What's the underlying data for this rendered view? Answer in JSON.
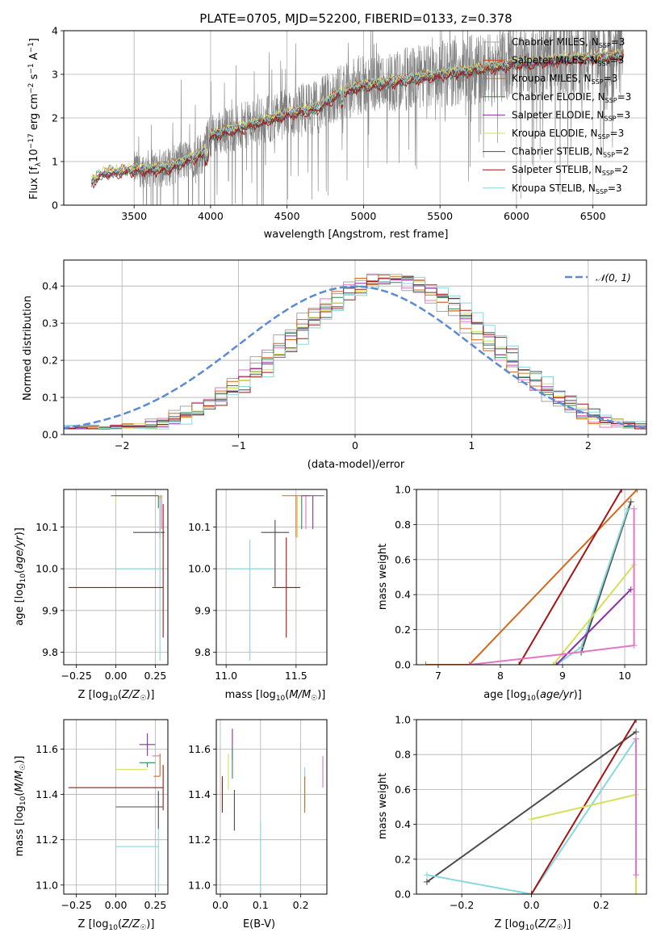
{
  "title": "PLATE=0705, MJD=52200, FIBERID=0133, z=0.378",
  "colors": {
    "data": "#808080",
    "chabrier_miles": "#a6a6a6",
    "salpeter_miles": "#c8472f",
    "kroupa_miles": "#d2691e",
    "chabrier_elodie": "#2e8b57",
    "salpeter_elodie": "#8b2fa8",
    "kroupa_elodie": "#d4e157",
    "chabrier_stelib": "#4d4d4d",
    "salpeter_stelib": "#a31515",
    "kroupa_stelib": "#87d8dc",
    "salpeter_miles_hist": "#e377c2",
    "gaussian": "#5b8ad6"
  },
  "chart_data": [
    {
      "id": "spectrum",
      "type": "line",
      "xlabel": "wavelength [Angstrom, rest frame]",
      "ylabel": "Flux [f_λ10⁻¹⁷ erg cm⁻² s⁻¹ A⁻¹]",
      "xlim": [
        3040,
        6850
      ],
      "ylim": [
        0,
        4
      ],
      "xticks": [
        "3500",
        "4000",
        "4500",
        "5000",
        "5500",
        "6000",
        "6500"
      ],
      "yticks": [
        "0",
        "1",
        "2",
        "3",
        "4"
      ],
      "legend_position": "upper right",
      "legend": [
        "Chabrier MILES, N_SSP=3",
        "Salpeter MILES, N_SSP=3",
        "Kroupa MILES, N_SSP=3",
        "Chabrier ELODIE, N_SSP=3",
        "Salpeter ELODIE, N_SSP=3",
        "Kroupa ELODIE, N_SSP=3",
        "Chabrier STELIB, N_SSP=2",
        "Salpeter STELIB, N_SSP=2",
        "Kroupa STELIB, N_SSP=3"
      ],
      "continuum_anchors": [
        {
          "x": 3220,
          "y": 0.55
        },
        {
          "x": 3300,
          "y": 0.75
        },
        {
          "x": 3500,
          "y": 0.82
        },
        {
          "x": 3700,
          "y": 0.85
        },
        {
          "x": 3850,
          "y": 1.05
        },
        {
          "x": 3950,
          "y": 1.2
        },
        {
          "x": 4000,
          "y": 1.6
        },
        {
          "x": 4200,
          "y": 1.8
        },
        {
          "x": 4500,
          "y": 2.1
        },
        {
          "x": 4700,
          "y": 2.25
        },
        {
          "x": 4850,
          "y": 2.6
        },
        {
          "x": 5000,
          "y": 2.75
        },
        {
          "x": 5200,
          "y": 2.85
        },
        {
          "x": 5500,
          "y": 3.0
        },
        {
          "x": 5800,
          "y": 3.15
        },
        {
          "x": 6000,
          "y": 3.25
        },
        {
          "x": 6300,
          "y": 3.35
        },
        {
          "x": 6550,
          "y": 3.4
        },
        {
          "x": 6700,
          "y": 3.45
        }
      ],
      "data_start": 3500,
      "models_start": 3220,
      "models_end": 6700
    },
    {
      "id": "residual_hist",
      "type": "line",
      "xlabel": "(data-model)/error",
      "ylabel": "Normed distribution",
      "xlim": [
        -2.5,
        2.5
      ],
      "ylim": [
        0,
        0.47
      ],
      "xticks": [
        "−2",
        "−1",
        "0",
        "1",
        "2"
      ],
      "yticks": [
        "0.0",
        "0.1",
        "0.2",
        "0.3",
        "0.4"
      ],
      "legend": [
        "𝒩(0, 1)"
      ],
      "legend_position": "upper right",
      "gaussian": {
        "mean": 0,
        "sigma": 1
      },
      "histogram": {
        "bin_width": 0.1,
        "center": 0.3,
        "sigma": 0.85,
        "peak": 0.42
      }
    },
    {
      "id": "age_vs_Z",
      "type": "scatter",
      "xlabel": "Z [log₁₀(Z/Z☉)]",
      "ylabel": "age  [log₁₀(age/yr)]",
      "xlim": [
        -0.33,
        0.33
      ],
      "ylim": [
        9.77,
        10.19
      ],
      "xticks": [
        "−0.25",
        "0.00",
        "0.25"
      ],
      "yticks": [
        "9.8",
        "9.9",
        "10.0",
        "10.1"
      ],
      "points": [
        {
          "color": "kroupa_elodie",
          "x": 0.0,
          "xerr": [
            0.0,
            0.3
          ],
          "y": 10.175,
          "yerr": [
            0.02,
            0.0
          ]
        },
        {
          "color": "chabrier_elodie",
          "x": 0.27,
          "xerr": [
            0.0,
            0.0
          ],
          "y": 10.175,
          "yerr": [
            0.03,
            0.0
          ]
        },
        {
          "color": "chabrier_stelib",
          "x": 0.27,
          "xerr": [
            0.3,
            0.0
          ],
          "y": 10.175,
          "yerr": [
            0.0,
            0.0
          ]
        },
        {
          "color": "kroupa_miles",
          "x": 0.28,
          "xerr": [
            0.0,
            0.0
          ],
          "y": 10.175,
          "yerr": [
            0.1,
            0.0
          ]
        },
        {
          "color": "salpeter_miles_hist",
          "x": 0.29,
          "xerr": [
            0.0,
            0.0
          ],
          "y": 10.175,
          "yerr": [
            0.08,
            0.0
          ]
        },
        {
          "color": "chabrier_stelib",
          "x": 0.21,
          "xerr": [
            0.1,
            0.1
          ],
          "y": 10.087,
          "yerr": [
            0.0,
            0.0
          ]
        },
        {
          "color": "kroupa_stelib",
          "x": 0.0,
          "xerr": [
            0.0,
            0.3
          ],
          "y": 10.0,
          "yerr": [
            0.0,
            0.0
          ]
        },
        {
          "color": "kroupa_stelib",
          "x": 0.28,
          "xerr": [
            0.0,
            0.0
          ],
          "y": 10.0,
          "yerr": [
            0.22,
            0.17
          ]
        },
        {
          "color": "salpeter_stelib",
          "x": -0.3,
          "xerr": [
            0.0,
            0.6
          ],
          "y": 9.955,
          "yerr": [
            0.0,
            0.0
          ]
        },
        {
          "color": "salpeter_stelib",
          "x": 0.3,
          "xerr": [
            0.0,
            0.0
          ],
          "y": 9.955,
          "yerr": [
            0.12,
            0.2
          ]
        }
      ]
    },
    {
      "id": "age_vs_mass",
      "type": "scatter",
      "xlabel": "mass [log₁₀(M/M☉)]",
      "ylabel": "",
      "xlim": [
        10.93,
        11.72
      ],
      "ylim": [
        9.77,
        10.19
      ],
      "xticks": [
        "11.0",
        "11.5"
      ],
      "yticks": [
        "9.8",
        "9.9",
        "10.0",
        "10.1"
      ],
      "points": [
        {
          "color": "kroupa_stelib",
          "x": 11.17,
          "xerr": [
            0.17,
            0.17
          ],
          "y": 10.0,
          "yerr": [
            0.22,
            0.07
          ]
        },
        {
          "color": "chabrier_stelib",
          "x": 11.35,
          "xerr": [
            0.1,
            0.1
          ],
          "y": 10.087,
          "yerr": [
            0.13,
            0.03
          ]
        },
        {
          "color": "salpeter_stelib",
          "x": 11.43,
          "xerr": [
            0.1,
            0.1
          ],
          "y": 9.955,
          "yerr": [
            0.12,
            0.12
          ]
        },
        {
          "color": "kroupa_miles",
          "x": 11.5,
          "xerr": [
            0.1,
            0.1
          ],
          "y": 10.175,
          "yerr": [
            0.1,
            0.0
          ]
        },
        {
          "color": "kroupa_elodie",
          "x": 11.51,
          "xerr": [
            0.0,
            0.0
          ],
          "y": 10.175,
          "yerr": [
            0.1,
            0.0
          ]
        },
        {
          "color": "chabrier_elodie",
          "x": 11.54,
          "xerr": [
            0.0,
            0.0
          ],
          "y": 10.175,
          "yerr": [
            0.08,
            0.0
          ]
        },
        {
          "color": "salpeter_miles_hist",
          "x": 11.57,
          "xerr": [
            0.0,
            0.0
          ],
          "y": 10.175,
          "yerr": [
            0.08,
            0.0
          ]
        },
        {
          "color": "salpeter_elodie",
          "x": 11.62,
          "xerr": [
            0.08,
            0.08
          ],
          "y": 10.175,
          "yerr": [
            0.08,
            0.0
          ]
        }
      ]
    },
    {
      "id": "cumulative_age",
      "type": "line",
      "xlabel": "age  [log₁₀(age/yr)]",
      "ylabel": "mass weight",
      "xlim": [
        6.65,
        10.35
      ],
      "ylim": [
        0,
        1
      ],
      "xticks": [
        "7",
        "8",
        "9",
        "10"
      ],
      "yticks": [
        "0.0",
        "0.2",
        "0.4",
        "0.6",
        "0.8",
        "1.0"
      ],
      "series": [
        {
          "color": "kroupa_miles",
          "points": [
            [
              6.8,
              0
            ],
            [
              7.5,
              0
            ],
            [
              10.2,
              1.0
            ]
          ]
        },
        {
          "color": "salpeter_stelib",
          "points": [
            [
              8.3,
              0
            ],
            [
              9.95,
              1.0
            ]
          ]
        },
        {
          "color": "chabrier_stelib",
          "points": [
            [
              9.3,
              0.07
            ],
            [
              10.1,
              0.93
            ]
          ]
        },
        {
          "color": "kroupa_stelib",
          "points": [
            [
              8.9,
              0
            ],
            [
              9.3,
              0.1
            ],
            [
              10.05,
              0.89
            ]
          ]
        },
        {
          "color": "salpeter_elodie",
          "points": [
            [
              8.9,
              0
            ],
            [
              10.1,
              0.43
            ]
          ]
        },
        {
          "color": "kroupa_elodie",
          "points": [
            [
              8.85,
              0
            ],
            [
              10.15,
              0.57
            ]
          ]
        },
        {
          "color": "salpeter_miles_hist",
          "points": [
            [
              7.5,
              0
            ],
            [
              9.0,
              0.06
            ],
            [
              10.15,
              0.11
            ],
            [
              10.15,
              0.89
            ]
          ]
        }
      ]
    },
    {
      "id": "mass_vs_Z",
      "type": "scatter",
      "xlabel": "Z [log₁₀(Z/Z☉)]",
      "ylabel": "mass [log₁₀(M/M☉)]",
      "xlim": [
        -0.33,
        0.33
      ],
      "ylim": [
        10.96,
        11.73
      ],
      "xticks": [
        "−0.25",
        "0.00",
        "0.25"
      ],
      "yticks": [
        "11.0",
        "11.2",
        "11.4",
        "11.6"
      ],
      "points": [
        {
          "color": "salpeter_elodie",
          "x": 0.2,
          "xerr": [
            0.05,
            0.05
          ],
          "y": 11.62,
          "yerr": [
            0.05,
            0.05
          ]
        },
        {
          "color": "salpeter_miles_hist",
          "x": 0.28,
          "xerr": [
            0.05,
            0.0
          ],
          "y": 11.57,
          "yerr": [
            0.0,
            0.0
          ]
        },
        {
          "color": "chabrier_elodie",
          "x": 0.2,
          "xerr": [
            0.05,
            0.05
          ],
          "y": 11.54,
          "yerr": [
            0.02,
            0.0
          ]
        },
        {
          "color": "kroupa_elodie",
          "x": 0.0,
          "xerr": [
            0.0,
            0.2
          ],
          "y": 11.51,
          "yerr": [
            0.0,
            0.0
          ]
        },
        {
          "color": "kroupa_miles",
          "x": 0.28,
          "xerr": [
            0.04,
            0.0
          ],
          "y": 11.48,
          "yerr": [
            0.0,
            0.1
          ]
        },
        {
          "color": "salpeter_stelib",
          "x": -0.3,
          "xerr": [
            0.0,
            0.6
          ],
          "y": 11.43,
          "yerr": [
            0.0,
            0.0
          ]
        },
        {
          "color": "salpeter_stelib",
          "x": 0.3,
          "xerr": [
            0.0,
            0.0
          ],
          "y": 11.43,
          "yerr": [
            0.1,
            0.1
          ]
        },
        {
          "color": "chabrier_stelib",
          "x": 0.0,
          "xerr": [
            0.0,
            0.3
          ],
          "y": 11.345,
          "yerr": [
            0.0,
            0.0
          ]
        },
        {
          "color": "chabrier_stelib",
          "x": 0.27,
          "xerr": [
            0.0,
            0.0
          ],
          "y": 11.345,
          "yerr": [
            0.1,
            0.07
          ]
        },
        {
          "color": "kroupa_stelib",
          "x": 0.0,
          "xerr": [
            0.0,
            0.27
          ],
          "y": 11.17,
          "yerr": [
            0.0,
            0.0
          ]
        },
        {
          "color": "kroupa_stelib",
          "x": 0.27,
          "xerr": [
            0.0,
            0.0
          ],
          "y": 11.17,
          "yerr": [
            0.2,
            0.08
          ]
        }
      ]
    },
    {
      "id": "mass_vs_ebv",
      "type": "scatter",
      "xlabel": "E(B-V)",
      "ylabel": "",
      "xlim": [
        -0.01,
        0.265
      ],
      "ylim": [
        10.96,
        11.73
      ],
      "xticks": [
        "0.0",
        "0.1",
        "0.2"
      ],
      "yticks": [
        "11.0",
        "11.2",
        "11.4",
        "11.6"
      ],
      "points": [
        {
          "color": "salpeter_stelib",
          "x": 0.005,
          "y": 11.4,
          "yerr": [
            0.08,
            0.08
          ]
        },
        {
          "color": "kroupa_elodie",
          "x": 0.02,
          "y": 11.5,
          "yerr": [
            0.08,
            0.08
          ]
        },
        {
          "color": "salpeter_elodie",
          "x": 0.03,
          "y": 11.62,
          "yerr": [
            0.07,
            0.07
          ]
        },
        {
          "color": "chabrier_elodie",
          "x": 0.03,
          "y": 11.54,
          "yerr": [
            0.07,
            0.07
          ]
        },
        {
          "color": "chabrier_stelib",
          "x": 0.035,
          "y": 11.33,
          "yerr": [
            0.09,
            0.09
          ]
        },
        {
          "color": "kroupa_stelib",
          "x": 0.1,
          "y": 11.12,
          "yerr": [
            0.16,
            0.16
          ]
        },
        {
          "color": "kroupa_stelib",
          "x": 0.21,
          "y": 11.43,
          "yerr": [
            0.09,
            0.09
          ]
        },
        {
          "color": "kroupa_miles",
          "x": 0.21,
          "y": 11.4,
          "yerr": [
            0.08,
            0.08
          ]
        },
        {
          "color": "salpeter_miles_hist",
          "x": 0.255,
          "y": 11.5,
          "yerr": [
            0.07,
            0.07
          ]
        }
      ]
    },
    {
      "id": "cumulative_Z",
      "type": "line",
      "xlabel": "Z [log₁₀(Z/Z☉)]",
      "ylabel": "mass weight",
      "xlim": [
        -0.33,
        0.33
      ],
      "ylim": [
        0,
        1
      ],
      "xticks": [
        "−0.2",
        "0.0",
        "0.2"
      ],
      "yticks": [
        "0.0",
        "0.2",
        "0.4",
        "0.6",
        "0.8",
        "1.0"
      ],
      "series": [
        {
          "color": "chabrier_stelib",
          "points": [
            [
              -0.3,
              0.07
            ],
            [
              0.3,
              0.93
            ]
          ]
        },
        {
          "color": "kroupa_stelib",
          "points": [
            [
              -0.3,
              0.11
            ],
            [
              0.0,
              0.0
            ],
            [
              0.3,
              0.89
            ]
          ]
        },
        {
          "color": "salpeter_stelib",
          "points": [
            [
              0.0,
              0.0
            ],
            [
              0.3,
              1.0
            ]
          ]
        },
        {
          "color": "kroupa_elodie",
          "points": [
            [
              0.0,
              0.43
            ],
            [
              0.3,
              0.57
            ],
            [
              0.3,
              0.0
            ]
          ]
        },
        {
          "color": "salpeter_miles_hist",
          "points": [
            [
              0.3,
              0.11
            ],
            [
              0.3,
              0.89
            ]
          ]
        }
      ]
    }
  ]
}
